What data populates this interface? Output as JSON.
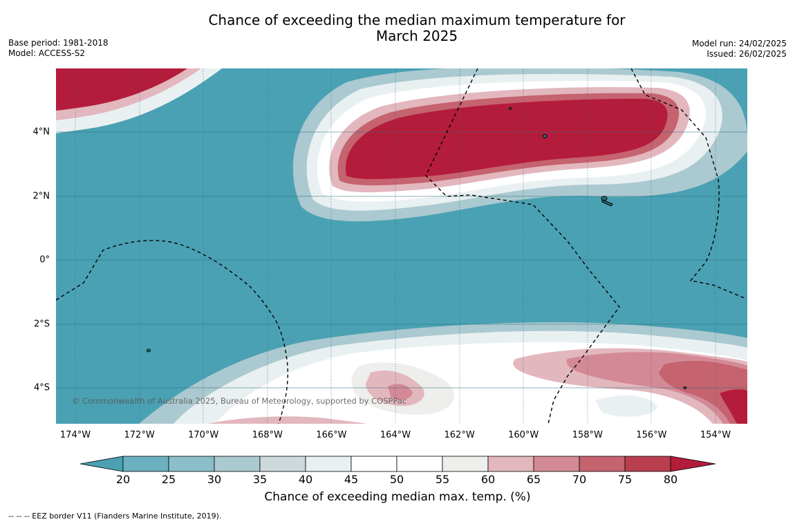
{
  "title_line1": "Chance of exceeding the median maximum temperature for",
  "title_line2": "March 2025",
  "base_period": "Base period: 1981-2018",
  "model": "Model: ACCESS-S2",
  "model_run": "Model run: 24/02/2025",
  "issued": "Issued: 26/02/2025",
  "copyright": "© Commonwealth of Australia 2025, Bureau of Meteorology, supported by COSPPac",
  "legend_note": "--  --  -- EEZ border V11 (Flanders Marine Institute, 2019).",
  "colorbar_label": "Chance of exceeding median max. temp. (%)",
  "y_labels": [
    "4°N",
    "2°N",
    "0°",
    "2°S",
    "4°S"
  ],
  "x_labels": [
    "174°W",
    "172°W",
    "170°W",
    "168°W",
    "166°W",
    "164°W",
    "162°W",
    "160°W",
    "158°W",
    "156°W",
    "154°W"
  ],
  "colorbar": {
    "ticks": [
      "20",
      "25",
      "30",
      "35",
      "40",
      "45",
      "50",
      "55",
      "60",
      "65",
      "70",
      "75",
      "80"
    ],
    "colors": [
      "#4aa1b3",
      "#6ab0bf",
      "#8bbec9",
      "#abc9d0",
      "#cdd9dc",
      "#e9f0f1",
      "#ffffff",
      "#ffffff",
      "#eeeeec",
      "#e3b7be",
      "#d38a96",
      "#c5636f",
      "#b93f4f",
      "#b41c3b"
    ]
  },
  "colors": {
    "low": "#4aa1b3",
    "high": "#b41c3b"
  }
}
